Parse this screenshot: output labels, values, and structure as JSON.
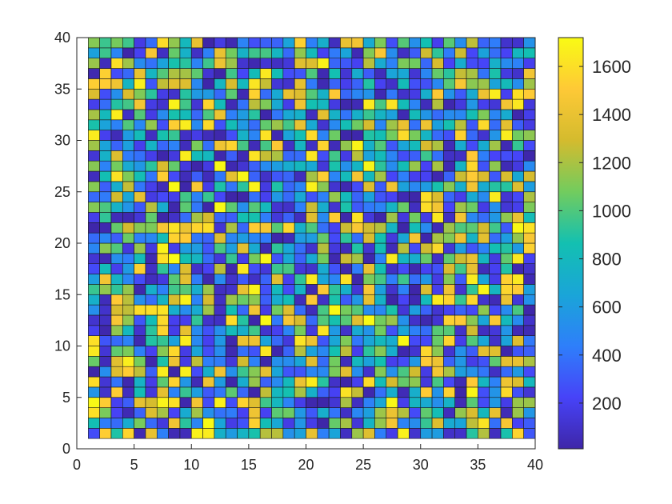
{
  "chart_data": {
    "type": "heatmap",
    "title": "",
    "xlabel": "",
    "ylabel": "",
    "xlim": [
      0,
      40
    ],
    "ylim": [
      0,
      40
    ],
    "grid_size": [
      39,
      39
    ],
    "cell_extent": {
      "x": [
        1,
        40
      ],
      "y": [
        1,
        40
      ]
    },
    "x_ticks": [
      0,
      5,
      10,
      15,
      20,
      25,
      30,
      35,
      40
    ],
    "y_ticks": [
      0,
      5,
      10,
      15,
      20,
      25,
      30,
      35,
      40
    ],
    "x_tick_labels": [
      "0",
      "5",
      "10",
      "15",
      "20",
      "25",
      "30",
      "35",
      "40"
    ],
    "y_tick_labels": [
      "0",
      "5",
      "10",
      "15",
      "20",
      "25",
      "30",
      "35",
      "40"
    ],
    "colorbar": {
      "min": 10,
      "max": 1720,
      "ticks": [
        200,
        400,
        600,
        800,
        1000,
        1200,
        1400,
        1600
      ],
      "tick_labels": [
        "200",
        "400",
        "600",
        "800",
        "1000",
        "1200",
        "1400",
        "1600"
      ],
      "colormap": "parula",
      "colors": [
        "#3e26a8",
        "#4743f8",
        "#2e7ffa",
        "#1aa5d8",
        "#13c0b1",
        "#72cc5e",
        "#d4bb2e",
        "#fec936",
        "#f9fb14"
      ]
    },
    "values_note": "",
    "seed": 7
  }
}
